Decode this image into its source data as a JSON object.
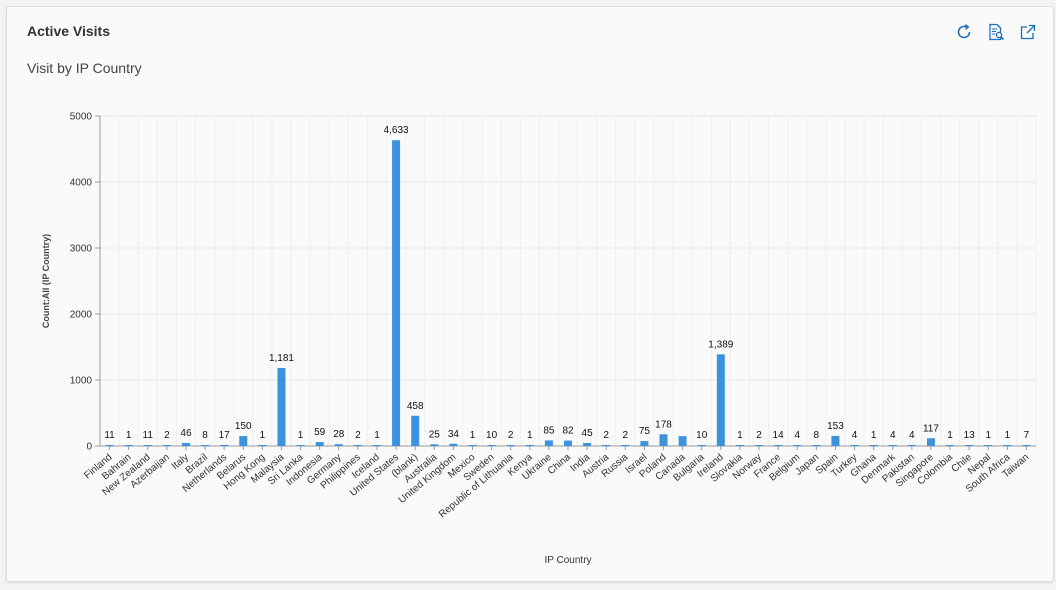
{
  "panel": {
    "title": "Active Visits",
    "subtitle": "Visit by IP Country",
    "icons": [
      "refresh-icon",
      "inspect-data-icon",
      "open-external-icon"
    ]
  },
  "colors": {
    "bar": "#3b93dd",
    "grid": "#e6e6e6",
    "axis": "#999999",
    "accent": "#1f6fb5"
  },
  "chart_data": {
    "type": "bar",
    "title": "Visit by IP Country",
    "xlabel": "IP Country",
    "ylabel": "Count:All (IP Country)",
    "ylim": [
      0,
      5000
    ],
    "yticks": [
      0,
      1000,
      2000,
      3000,
      4000,
      5000
    ],
    "grid": true,
    "categories": [
      "Finland",
      "Bahrain",
      "New Zealand",
      "Azerbaijan",
      "Italy",
      "Brazil",
      "Netherlands",
      "Belarus",
      "Hong Kong",
      "Malaysia",
      "Sri Lanka",
      "Indonesia",
      "Germany",
      "Philippines",
      "Iceland",
      "United States",
      "(blank)",
      "Australia",
      "United Kingdom",
      "Mexico",
      "Sweden",
      "Republic of Lithuania",
      "Kenya",
      "Ukraine",
      "China",
      "India",
      "Austria",
      "Russia",
      "Israel",
      "Poland",
      "Canada",
      "Bulgaria",
      "Ireland",
      "Slovakia",
      "Norway",
      "France",
      "Belgium",
      "Japan",
      "Spain",
      "Turkey",
      "Ghana",
      "Denmark",
      "Pakistan",
      "Singapore",
      "Colombia",
      "Chile",
      "Nepal",
      "South Africa",
      "Taiwan"
    ],
    "values": [
      11,
      1,
      11,
      2,
      46,
      8,
      17,
      150,
      1,
      1181,
      1,
      59,
      28,
      2,
      1,
      4633,
      458,
      25,
      34,
      1,
      10,
      2,
      1,
      85,
      82,
      45,
      2,
      2,
      75,
      178,
      149,
      10,
      1389,
      1,
      2,
      14,
      4,
      8,
      153,
      4,
      1,
      4,
      4,
      117,
      1,
      13,
      1,
      1,
      7
    ],
    "data_labels": [
      "11",
      "1",
      "11",
      "2",
      "46",
      "8",
      "17",
      "150",
      "1",
      "1,181",
      "1",
      "59",
      "28",
      "2",
      "1",
      "4,633",
      "458",
      "25",
      "34",
      "1",
      "10",
      "2",
      "1",
      "85",
      "82",
      "45",
      "2",
      "2",
      "75",
      "178",
      "",
      "10",
      "1,389",
      "1",
      "2",
      "14",
      "4",
      "8",
      "153",
      "4",
      "1",
      "4",
      "4",
      "117",
      "1",
      "13",
      "1",
      "1",
      "7"
    ]
  }
}
